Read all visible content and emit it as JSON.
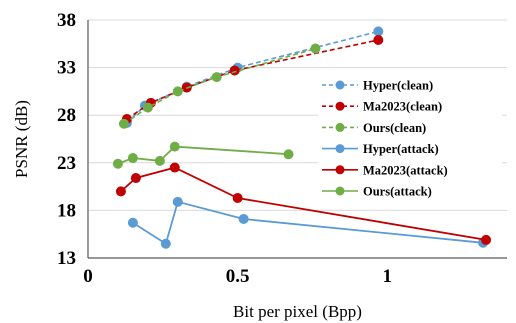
{
  "chart_data": {
    "type": "line",
    "title": "",
    "xlabel": "Bit per pixel (Bpp)",
    "ylabel": "PSNR (dB)",
    "xlim": [
      0,
      1.4
    ],
    "ylim": [
      13,
      38
    ],
    "x_ticks": [
      0,
      0.5,
      1
    ],
    "x_tick_labels": [
      "0",
      "0.5",
      "1"
    ],
    "y_ticks": [
      13,
      18,
      23,
      28,
      33,
      38
    ],
    "y_tick_labels": [
      "13",
      "18",
      "23",
      "28",
      "33",
      "38"
    ],
    "grid": "horizontal",
    "legend_position": "right",
    "series": [
      {
        "name": "Hyper(clean)",
        "color": "#5B9BD5",
        "dashed": true,
        "x": [
          0.13,
          0.19,
          0.33,
          0.5,
          0.97
        ],
        "y": [
          27.2,
          29.0,
          31.0,
          33.0,
          36.8
        ]
      },
      {
        "name": "Ma2023(clean)",
        "color": "#C00000",
        "dashed": true,
        "x": [
          0.13,
          0.21,
          0.33,
          0.49,
          0.97
        ],
        "y": [
          27.6,
          29.3,
          30.9,
          32.7,
          35.9
        ]
      },
      {
        "name": "Ours(clean)",
        "color": "#70AD47",
        "dashed": true,
        "x": [
          0.12,
          0.2,
          0.3,
          0.43,
          0.76
        ],
        "y": [
          27.1,
          28.8,
          30.5,
          32.0,
          35.0
        ]
      },
      {
        "name": "Hyper(attack)",
        "color": "#5B9BD5",
        "dashed": false,
        "x": [
          0.15,
          0.26,
          0.3,
          0.52,
          1.32
        ],
        "y": [
          16.7,
          14.5,
          18.9,
          17.1,
          14.6
        ]
      },
      {
        "name": "Ma2023(attack)",
        "color": "#C00000",
        "dashed": false,
        "x": [
          0.11,
          0.16,
          0.29,
          0.5,
          1.33
        ],
        "y": [
          20.0,
          21.4,
          22.5,
          19.3,
          14.9
        ]
      },
      {
        "name": "Ours(attack)",
        "color": "#70AD47",
        "dashed": false,
        "x": [
          0.1,
          0.15,
          0.24,
          0.29,
          0.67
        ],
        "y": [
          22.9,
          23.5,
          23.2,
          24.7,
          23.9
        ]
      }
    ]
  }
}
